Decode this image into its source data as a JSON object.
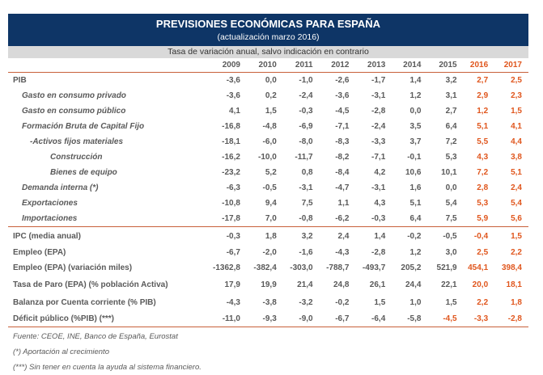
{
  "header": {
    "title": "PREVISIONES ECONÓMICAS PARA ESPAÑA",
    "subtitle": "(actualización marzo 2016)",
    "note": "Tasa de variación anual, salvo indicación en contrario"
  },
  "colors": {
    "title_band": "#0e3566",
    "sub_band": "#d9d9d9",
    "forecast": "#e0561d",
    "rule": "#c8603a"
  },
  "years": [
    "2009",
    "2010",
    "2011",
    "2012",
    "2013",
    "2014",
    "2015",
    "2016",
    "2017"
  ],
  "rows": [
    {
      "label": "PIB",
      "values": [
        "-3,6",
        "0,0",
        "-1,0",
        "-2,6",
        "-1,7",
        "1,4",
        "3,2",
        "2,7",
        "2,5"
      ]
    },
    {
      "label": "Gasto en consumo privado",
      "values": [
        "-3,6",
        "0,2",
        "-2,4",
        "-3,6",
        "-3,1",
        "1,2",
        "3,1",
        "2,9",
        "2,3"
      ]
    },
    {
      "label": "Gasto en consumo público",
      "values": [
        "4,1",
        "1,5",
        "-0,3",
        "-4,5",
        "-2,8",
        "0,0",
        "2,7",
        "1,2",
        "1,5"
      ]
    },
    {
      "label": "Formación Bruta de Capital Fijo",
      "values": [
        "-16,8",
        "-4,8",
        "-6,9",
        "-7,1",
        "-2,4",
        "3,5",
        "6,4",
        "5,1",
        "4,1"
      ]
    },
    {
      "label": "-Activos fijos materiales",
      "values": [
        "-18,1",
        "-6,0",
        "-8,0",
        "-8,3",
        "-3,3",
        "3,7",
        "7,2",
        "5,5",
        "4,4"
      ]
    },
    {
      "label": "Construcción",
      "values": [
        "-16,2",
        "-10,0",
        "-11,7",
        "-8,2",
        "-7,1",
        "-0,1",
        "5,3",
        "4,3",
        "3,8"
      ]
    },
    {
      "label": "Bienes de equipo",
      "values": [
        "-23,2",
        "5,2",
        "0,8",
        "-8,4",
        "4,2",
        "10,6",
        "10,1",
        "7,2",
        "5,1"
      ]
    },
    {
      "label": "Demanda interna (*)",
      "values": [
        "-6,3",
        "-0,5",
        "-3,1",
        "-4,7",
        "-3,1",
        "1,6",
        "0,0",
        "2,8",
        "2,4"
      ]
    },
    {
      "label": "Exportaciones",
      "values": [
        "-10,8",
        "9,4",
        "7,5",
        "1,1",
        "4,3",
        "5,1",
        "5,4",
        "5,3",
        "5,4"
      ]
    },
    {
      "label": "Importaciones",
      "values": [
        "-17,8",
        "7,0",
        "-0,8",
        "-6,2",
        "-0,3",
        "6,4",
        "7,5",
        "5,9",
        "5,6"
      ]
    },
    {
      "label": "IPC (media anual)",
      "values": [
        "-0,3",
        "1,8",
        "3,2",
        "2,4",
        "1,4",
        "-0,2",
        "-0,5",
        "-0,4",
        "1,5"
      ]
    },
    {
      "label": "Empleo (EPA)",
      "values": [
        "-6,7",
        "-2,0",
        "-1,6",
        "-4,3",
        "-2,8",
        "1,2",
        "3,0",
        "2,5",
        "2,2"
      ]
    },
    {
      "label": "Empleo (EPA) (variación miles)",
      "values": [
        "-1362,8",
        "-382,4",
        "-303,0",
        "-788,7",
        "-493,7",
        "205,2",
        "521,9",
        "454,1",
        "398,4"
      ]
    },
    {
      "label": "Tasa de Paro (EPA) (% población Activa)",
      "values": [
        "17,9",
        "19,9",
        "21,4",
        "24,8",
        "26,1",
        "24,4",
        "22,1",
        "20,0",
        "18,1"
      ]
    },
    {
      "label": "Balanza por Cuenta corriente (% PIB)",
      "values": [
        "-4,3",
        "-3,8",
        "-3,2",
        "-0,2",
        "1,5",
        "1,0",
        "1,5",
        "2,2",
        "1,8"
      ]
    },
    {
      "label": "Déficit público (%PIB)  (***)",
      "values": [
        "-11,0",
        "-9,3",
        "-9,0",
        "-6,7",
        "-6,4",
        "-5,8",
        "-4,5",
        "-3,3",
        "-2,8"
      ]
    }
  ],
  "footnotes": [
    "Fuente: CEOE, INE, Banco de España, Eurostat",
    "(*) Aportación al crecimiento",
    "(***) Sin tener en cuenta la ayuda al sistema financiero."
  ]
}
